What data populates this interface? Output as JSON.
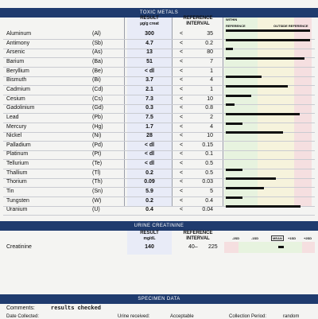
{
  "toxic": {
    "title": "TOXIC METALS",
    "result_header": "RESULT",
    "result_unit": "µg/g creat",
    "ref_header_1": "REFERENCE",
    "ref_header_2": "INTERVAL",
    "within_label": "WITHIN",
    "reference_label": "REFERENCE",
    "outside_label": "OUTSIDE REFERENCE",
    "rows": [
      {
        "name": "Aluminum",
        "symbol": "(Al)",
        "result": "300",
        "lt": "<",
        "ref": "35",
        "level": 0.98
      },
      {
        "name": "Antimony",
        "symbol": "(Sb)",
        "result": "4.7",
        "lt": "<",
        "ref": "0.2",
        "level": 0.98
      },
      {
        "name": "Arsenic",
        "symbol": "(As)",
        "result": "13",
        "lt": "<",
        "ref": "80",
        "level": 0.08
      },
      {
        "name": "Barium",
        "symbol": "(Ba)",
        "result": "51",
        "lt": "<",
        "ref": "7",
        "level": 0.92
      },
      {
        "name": "Beryllium",
        "symbol": "(Be)",
        "result": "< dl",
        "lt": "<",
        "ref": "1",
        "level": 0
      },
      {
        "name": "Bismuth",
        "symbol": "(Bi)",
        "result": "3.7",
        "lt": "<",
        "ref": "4",
        "level": 0.42
      },
      {
        "name": "Cadmium",
        "symbol": "(Cd)",
        "result": "2.1",
        "lt": "<",
        "ref": "1",
        "level": 0.72
      },
      {
        "name": "Cesium",
        "symbol": "(Cs)",
        "result": "7.3",
        "lt": "<",
        "ref": "10",
        "level": 0.3
      },
      {
        "name": "Gadolinium",
        "symbol": "(Gd)",
        "result": "0.3",
        "lt": "<",
        "ref": "0.8",
        "level": 0.1
      },
      {
        "name": "Lead",
        "symbol": "(Pb)",
        "result": "7.5",
        "lt": "<",
        "ref": "2",
        "level": 0.86
      },
      {
        "name": "Mercury",
        "symbol": "(Hg)",
        "result": "1.7",
        "lt": "<",
        "ref": "4",
        "level": 0.19
      },
      {
        "name": "Nickel",
        "symbol": "(Ni)",
        "result": "28",
        "lt": "<",
        "ref": "10",
        "level": 0.67
      },
      {
        "name": "Palladium",
        "symbol": "(Pd)",
        "result": "< dl",
        "lt": "<",
        "ref": "0.15",
        "level": 0
      },
      {
        "name": "Platinum",
        "symbol": "(Pt)",
        "result": "< dl",
        "lt": "<",
        "ref": "0.1",
        "level": 0
      },
      {
        "name": "Tellurium",
        "symbol": "(Te)",
        "result": "< dl",
        "lt": "<",
        "ref": "0.5",
        "level": 0
      },
      {
        "name": "Thallium",
        "symbol": "(Tl)",
        "result": "0.2",
        "lt": "<",
        "ref": "0.5",
        "level": 0.19
      },
      {
        "name": "Thorium",
        "symbol": "(Th)",
        "result": "0.09",
        "lt": "<",
        "ref": "0.03",
        "level": 0.58
      },
      {
        "name": "Tin",
        "symbol": "(Sn)",
        "result": "5.9",
        "lt": "<",
        "ref": "5",
        "level": 0.44
      },
      {
        "name": "Tungsten",
        "symbol": "(W)",
        "result": "0.2",
        "lt": "<",
        "ref": "0.4",
        "level": 0.19
      },
      {
        "name": "Uranium",
        "symbol": "(U)",
        "result": "0.4",
        "lt": "<",
        "ref": "0.04",
        "level": 0.87
      }
    ]
  },
  "urine": {
    "title": "URINE CREATININE",
    "result_header": "RESULT",
    "result_unit": "mg/dL",
    "ref_header_1": "REFERENCE",
    "ref_header_2": "INTERVAL",
    "scale": [
      "-2SD",
      "-1SD",
      "MEAN",
      "+1SD",
      "+2SD"
    ],
    "row": {
      "name": "Creatinine",
      "result": "140",
      "ref_low": "40–",
      "ref_high": "225"
    }
  },
  "specimen": {
    "title": "SPECIMEN DATA",
    "comments_label": "Comments:",
    "comments_value": "results checked",
    "date_collected_label": "Date Collected:",
    "date_received_label": "Urine received:",
    "date_received_value": "Acceptable",
    "collection_period_label": "Collection Period:",
    "collection_period_value": "random"
  }
}
